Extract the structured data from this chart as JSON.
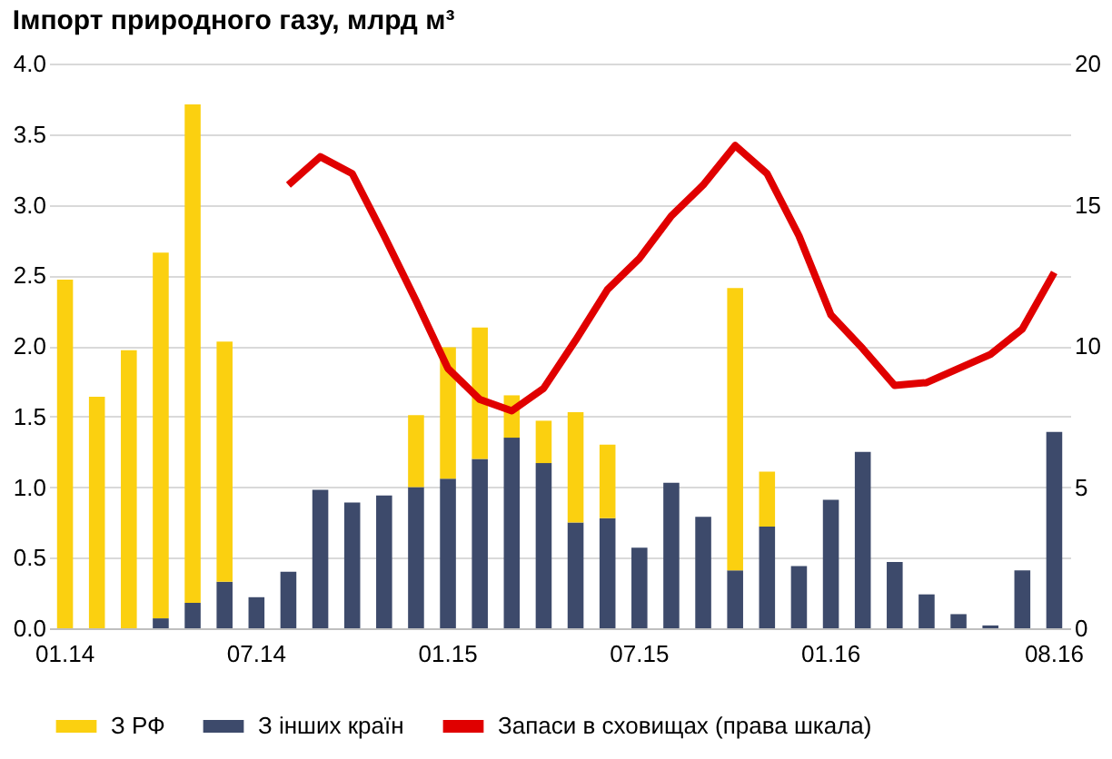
{
  "chart_data": {
    "type": "bar",
    "title": "Імпорт природного газу, млрд м³",
    "stacked": true,
    "categories": [
      "01.14",
      null,
      null,
      null,
      null,
      null,
      "07.14",
      null,
      null,
      null,
      null,
      null,
      "01.15",
      null,
      null,
      null,
      null,
      null,
      "07.15",
      null,
      null,
      null,
      null,
      null,
      "01.16",
      null,
      null,
      null,
      null,
      null,
      null,
      "08.16"
    ],
    "series": [
      {
        "name": "З інших країн",
        "color": "#3d4a6b",
        "values": [
          0,
          0,
          0,
          0.07,
          0.18,
          0.33,
          0.22,
          0.4,
          0.98,
          0.89,
          0.94,
          1.0,
          1.06,
          1.2,
          1.35,
          1.17,
          0.75,
          0.78,
          0.57,
          1.03,
          0.79,
          0.41,
          0.72,
          0.44,
          0.91,
          1.25,
          0.47,
          0.24,
          0.1,
          0.02,
          0.41,
          1.39
        ]
      },
      {
        "name": "З РФ",
        "color": "#fbd010",
        "values": [
          2.47,
          1.64,
          1.97,
          2.59,
          3.53,
          1.7,
          0,
          0,
          0,
          0,
          0,
          0.51,
          0.93,
          0.93,
          0.3,
          0.3,
          0.78,
          0.52,
          0,
          0,
          0,
          2.0,
          0.39,
          0,
          0,
          0,
          0,
          0,
          0,
          0,
          0,
          0
        ]
      },
      {
        "name": "Запаси в сховищах (права шкала)",
        "type": "line",
        "axis": "y2",
        "color": "#e00000",
        "values": [
          null,
          null,
          null,
          null,
          null,
          null,
          null,
          15.7,
          16.7,
          16.1,
          13.9,
          11.6,
          9.2,
          8.1,
          7.7,
          8.5,
          10.2,
          12.0,
          13.1,
          14.6,
          15.7,
          17.1,
          16.1,
          13.9,
          11.1,
          9.9,
          8.6,
          8.7,
          9.2,
          9.7,
          10.6,
          12.6
        ]
      }
    ],
    "ylim": [
      0,
      4
    ],
    "yticks": [
      {
        "value": 0,
        "label": "0.0"
      },
      {
        "value": 0.5,
        "label": "0.5"
      },
      {
        "value": 1,
        "label": "1.0"
      },
      {
        "value": 1.5,
        "label": "1.5"
      },
      {
        "value": 2,
        "label": "2.0"
      },
      {
        "value": 2.5,
        "label": "2.5"
      },
      {
        "value": 3,
        "label": "3.0"
      },
      {
        "value": 3.5,
        "label": "3.5"
      },
      {
        "value": 4,
        "label": "4.0"
      }
    ],
    "y2lim": [
      0,
      20
    ],
    "y2ticks": [
      0,
      5,
      10,
      15,
      20
    ],
    "grid": "y",
    "legend": "bottom"
  }
}
